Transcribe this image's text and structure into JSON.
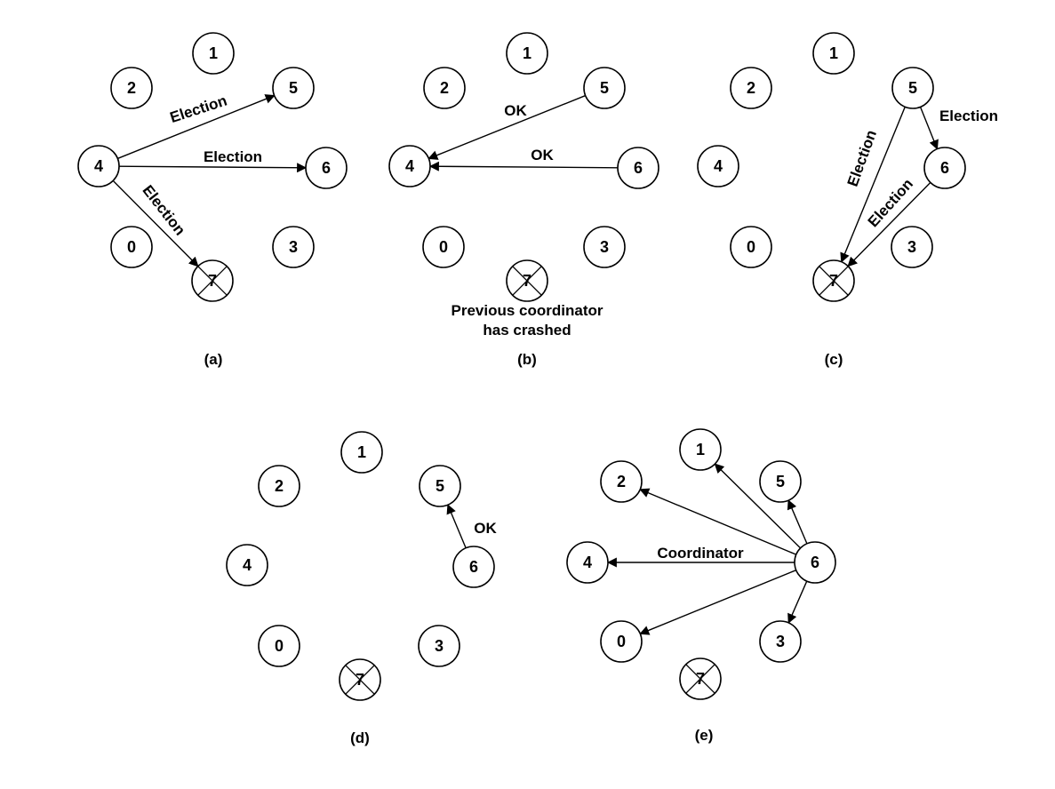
{
  "panels": [
    {
      "label": "(a)",
      "nodes": [
        {
          "id": "1",
          "label": "1"
        },
        {
          "id": "2",
          "label": "2"
        },
        {
          "id": "5",
          "label": "5"
        },
        {
          "id": "4",
          "label": "4"
        },
        {
          "id": "6",
          "label": "6"
        },
        {
          "id": "0",
          "label": "0"
        },
        {
          "id": "3",
          "label": "3"
        },
        {
          "id": "7",
          "label": "7",
          "crashed": true
        }
      ],
      "edges": [
        {
          "from": "4",
          "to": "5",
          "label": "Election"
        },
        {
          "from": "4",
          "to": "6",
          "label": "Election"
        },
        {
          "from": "4",
          "to": "7",
          "label": "Election"
        }
      ]
    },
    {
      "label": "(b)",
      "caption": [
        "Previous coordinator",
        "has crashed"
      ],
      "nodes": [
        {
          "id": "1",
          "label": "1"
        },
        {
          "id": "2",
          "label": "2"
        },
        {
          "id": "5",
          "label": "5"
        },
        {
          "id": "4",
          "label": "4"
        },
        {
          "id": "6",
          "label": "6"
        },
        {
          "id": "0",
          "label": "0"
        },
        {
          "id": "3",
          "label": "3"
        },
        {
          "id": "7",
          "label": "7",
          "crashed": true
        }
      ],
      "edges": [
        {
          "from": "5",
          "to": "4",
          "label": "OK"
        },
        {
          "from": "6",
          "to": "4",
          "label": "OK"
        }
      ]
    },
    {
      "label": "(c)",
      "nodes": [
        {
          "id": "1",
          "label": "1"
        },
        {
          "id": "2",
          "label": "2"
        },
        {
          "id": "5",
          "label": "5"
        },
        {
          "id": "4",
          "label": "4"
        },
        {
          "id": "6",
          "label": "6"
        },
        {
          "id": "0",
          "label": "0"
        },
        {
          "id": "3",
          "label": "3"
        },
        {
          "id": "7",
          "label": "7",
          "crashed": true
        }
      ],
      "edges": [
        {
          "from": "5",
          "to": "6",
          "label": "Election"
        },
        {
          "from": "5",
          "to": "7",
          "label": "Election"
        },
        {
          "from": "6",
          "to": "7",
          "label": "Election"
        }
      ]
    },
    {
      "label": "(d)",
      "nodes": [
        {
          "id": "1",
          "label": "1"
        },
        {
          "id": "2",
          "label": "2"
        },
        {
          "id": "5",
          "label": "5"
        },
        {
          "id": "4",
          "label": "4"
        },
        {
          "id": "6",
          "label": "6"
        },
        {
          "id": "0",
          "label": "0"
        },
        {
          "id": "3",
          "label": "3"
        },
        {
          "id": "7",
          "label": "7",
          "crashed": true
        }
      ],
      "edges": [
        {
          "from": "6",
          "to": "5",
          "label": "OK"
        }
      ]
    },
    {
      "label": "(e)",
      "nodes": [
        {
          "id": "1",
          "label": "1"
        },
        {
          "id": "2",
          "label": "2"
        },
        {
          "id": "5",
          "label": "5"
        },
        {
          "id": "4",
          "label": "4"
        },
        {
          "id": "6",
          "label": "6"
        },
        {
          "id": "0",
          "label": "0"
        },
        {
          "id": "3",
          "label": "3"
        },
        {
          "id": "7",
          "label": "7",
          "crashed": true
        }
      ],
      "edges": [
        {
          "from": "6",
          "to": "1",
          "label": ""
        },
        {
          "from": "6",
          "to": "2",
          "label": ""
        },
        {
          "from": "6",
          "to": "5",
          "label": ""
        },
        {
          "from": "6",
          "to": "4",
          "label": "Coordinator"
        },
        {
          "from": "6",
          "to": "0",
          "label": ""
        },
        {
          "from": "6",
          "to": "3",
          "label": ""
        }
      ]
    }
  ]
}
